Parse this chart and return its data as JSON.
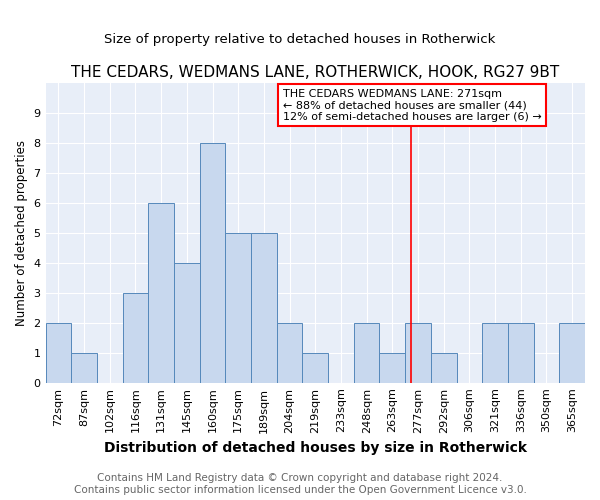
{
  "title": "THE CEDARS, WEDMANS LANE, ROTHERWICK, HOOK, RG27 9BT",
  "subtitle": "Size of property relative to detached houses in Rotherwick",
  "xlabel": "Distribution of detached houses by size in Rotherwick",
  "ylabel": "Number of detached properties",
  "categories": [
    "72sqm",
    "87sqm",
    "102sqm",
    "116sqm",
    "131sqm",
    "145sqm",
    "160sqm",
    "175sqm",
    "189sqm",
    "204sqm",
    "219sqm",
    "233sqm",
    "248sqm",
    "263sqm",
    "277sqm",
    "292sqm",
    "306sqm",
    "321sqm",
    "336sqm",
    "350sqm",
    "365sqm"
  ],
  "values": [
    2,
    1,
    0,
    3,
    6,
    4,
    8,
    5,
    5,
    2,
    1,
    0,
    2,
    1,
    2,
    1,
    0,
    2,
    2,
    0,
    2
  ],
  "bar_color": "#c8d8ee",
  "bar_edge_color": "#5588bb",
  "red_line_index": 13.72,
  "legend_text": [
    "THE CEDARS WEDMANS LANE: 271sqm",
    "← 88% of detached houses are smaller (44)",
    "12% of semi-detached houses are larger (6) →"
  ],
  "ylim": [
    0,
    10
  ],
  "yticks": [
    0,
    1,
    2,
    3,
    4,
    5,
    6,
    7,
    8,
    9,
    10
  ],
  "fig_bg_color": "#ffffff",
  "plot_bg_color": "#e8eef8",
  "grid_color": "#ffffff",
  "footer": "Contains HM Land Registry data © Crown copyright and database right 2024.\nContains public sector information licensed under the Open Government Licence v3.0.",
  "title_fontsize": 11,
  "subtitle_fontsize": 9.5,
  "xlabel_fontsize": 10,
  "ylabel_fontsize": 8.5,
  "tick_fontsize": 8,
  "legend_fontsize": 8,
  "footer_fontsize": 7.5
}
